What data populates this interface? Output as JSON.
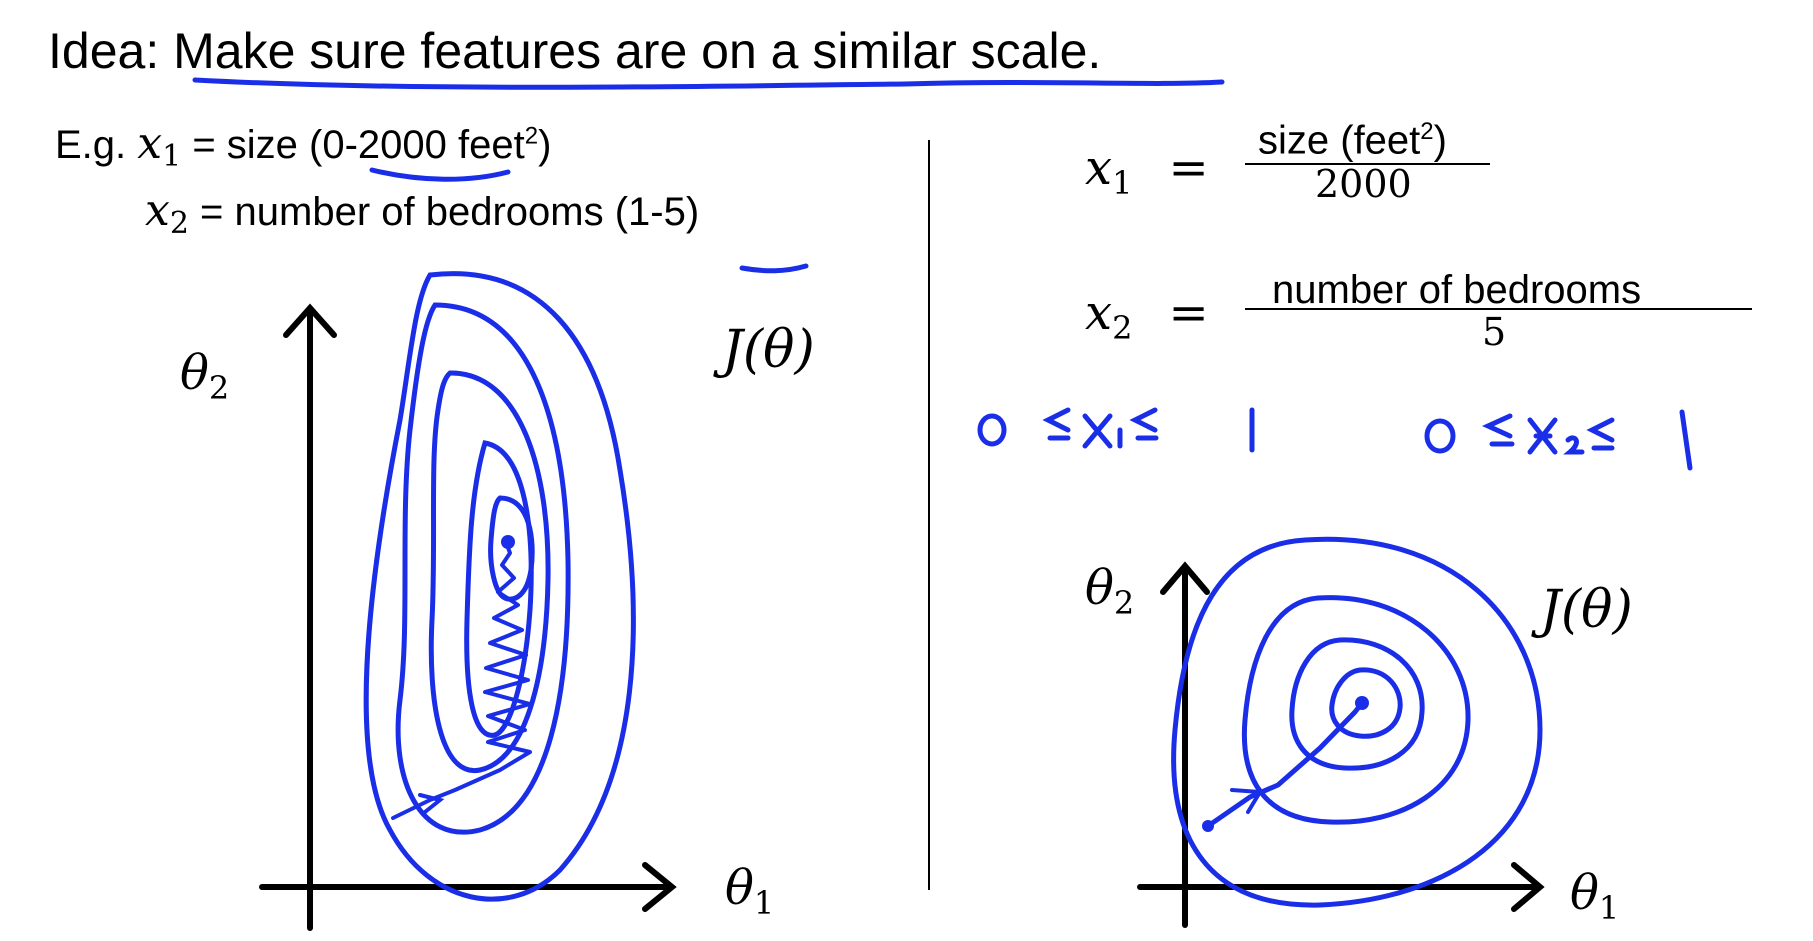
{
  "slide": {
    "title": {
      "prefix": "Idea: ",
      "emphasis": "Make sure features are on a similar scale",
      "suffix": "."
    },
    "example": {
      "lead": "E.g.",
      "x1": {
        "var": "x",
        "sub": "1",
        "text_before": " = size (",
        "range": "0-2000",
        "text_after": " feet",
        "sup": "2",
        "close": ")"
      },
      "x2": {
        "var": "x",
        "sub": "2",
        "text_before": " = number of bedrooms (",
        "range": "1-5",
        "close": ")"
      }
    },
    "left_plot": {
      "y_axis_symbol": "θ",
      "y_axis_sub": "2",
      "x_axis_symbol": "θ",
      "x_axis_sub": "1",
      "cost_label": "J(θ)"
    },
    "scaling": {
      "x1": {
        "var": "x",
        "sub": "1",
        "eq": "=",
        "numerator": "size (feet",
        "numerator_sup": "2",
        "numerator_close": ")",
        "denominator": "2000"
      },
      "x2": {
        "var": "x",
        "sub": "2",
        "eq": "=",
        "numerator": "number of bedrooms",
        "denominator": "5"
      }
    },
    "handwritten_bounds": {
      "left": "0 ≤ x₁ ≤ 1",
      "right": "0 ≤ x₂ ≤ 1"
    },
    "right_plot": {
      "y_axis_symbol": "θ",
      "y_axis_sub": "2",
      "x_axis_symbol": "θ",
      "x_axis_sub": "1",
      "cost_label": "J(θ)"
    },
    "ink_color": "#1a2ee8",
    "text_color": "#000000"
  }
}
